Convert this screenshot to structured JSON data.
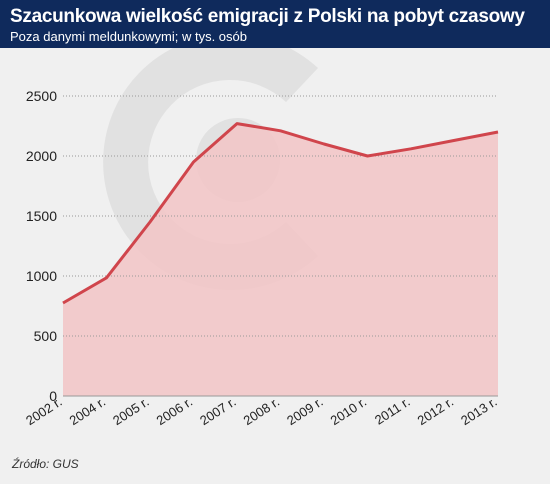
{
  "header": {
    "title": "Szacunkowa wielkość emigracji z Polski na pobyt czasowy",
    "subtitle": "Poza danymi meldunkowymi; w tys. osób"
  },
  "source": "Źródło: GUS",
  "chart_data": {
    "type": "area",
    "categories": [
      "2002 r.",
      "2004 r.",
      "2005 r.",
      "2006 r.",
      "2007 r.",
      "2008 r.",
      "2009 r.",
      "2010 r.",
      "2011 r.",
      "2012 r.",
      "2013 r."
    ],
    "values": [
      775,
      985,
      1450,
      1950,
      2270,
      2210,
      2100,
      2000,
      2060,
      2130,
      2200
    ],
    "yticks": [
      0,
      500,
      1000,
      1500,
      2000,
      2500
    ],
    "ylim": [
      0,
      2500
    ],
    "grid": true,
    "colors": {
      "line": "#d0454c",
      "fill": "#f2c4c6",
      "grid": "#999999",
      "watermark": "#dcdcdc"
    }
  }
}
